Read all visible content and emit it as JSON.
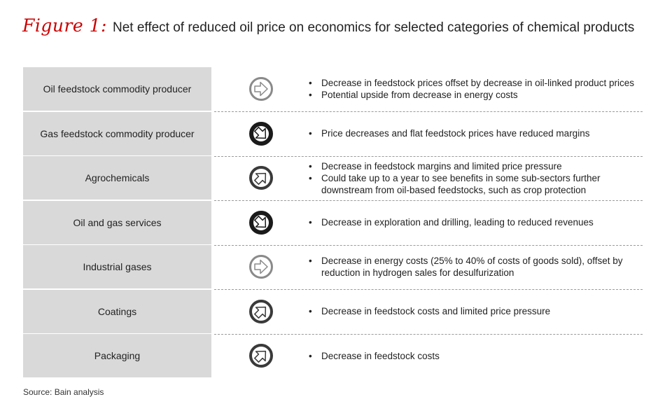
{
  "title": {
    "figure_label": "Figure 1:",
    "text": "Net effect of reduced oil price on economics for selected categories of chemical products"
  },
  "rows": [
    {
      "label": "Oil feedstock commodity producer",
      "icon": "right-arrow-icon",
      "direction": "right",
      "style": "light",
      "bullets": [
        "Decrease in feedstock prices offset by decrease in oil-linked product prices",
        "Potential upside from decrease in energy costs"
      ]
    },
    {
      "label": "Gas feedstock commodity producer",
      "icon": "down-right-arrow-icon",
      "direction": "down-right",
      "style": "dark",
      "bullets": [
        "Price decreases and flat feedstock prices have reduced margins"
      ]
    },
    {
      "label": "Agrochemicals",
      "icon": "up-right-arrow-icon",
      "direction": "up-right",
      "style": "medium",
      "bullets": [
        "Decrease in feedstock margins and limited price pressure",
        "Could take up to a year to see benefits in some sub-sectors further downstream from oil-based feedstocks, such as crop protection"
      ]
    },
    {
      "label": "Oil and gas services",
      "icon": "down-right-arrow-icon",
      "direction": "down-right",
      "style": "dark",
      "bullets": [
        "Decrease in exploration and drilling, leading to reduced revenues"
      ]
    },
    {
      "label": "Industrial gases",
      "icon": "right-arrow-icon",
      "direction": "right",
      "style": "light",
      "bullets": [
        "Decrease in energy costs (25% to 40% of costs of goods sold), offset by reduction in hydrogen sales for desulfurization"
      ]
    },
    {
      "label": "Coatings",
      "icon": "up-right-arrow-icon",
      "direction": "up-right",
      "style": "medium",
      "bullets": [
        "Decrease in feedstock costs and limited price pressure"
      ]
    },
    {
      "label": "Packaging",
      "icon": "up-right-arrow-icon",
      "direction": "up-right",
      "style": "medium",
      "bullets": [
        "Decrease in feedstock costs"
      ]
    }
  ],
  "source": "Source: Bain analysis",
  "colors": {
    "accent": "#cc0000",
    "label_bg": "#d9d9d9",
    "icon_dark": "#1a1a1a",
    "icon_medium": "#3a3a3a",
    "icon_light": "#8a8a8a"
  }
}
